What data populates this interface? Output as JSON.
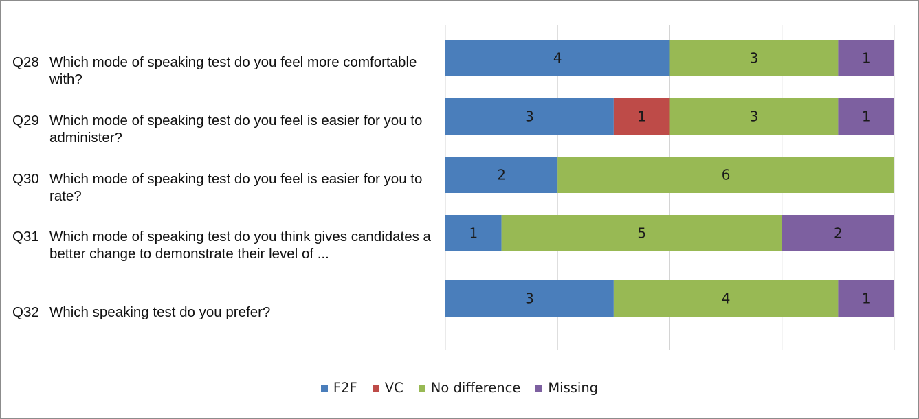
{
  "questions": [
    {
      "num": "Q28",
      "text": "Which mode of speaking test do you feel more comfortable with?"
    },
    {
      "num": "Q29",
      "text": "Which mode of speaking test do you feel is easier for you to administer?"
    },
    {
      "num": "Q30",
      "text": "Which mode of speaking test do you feel is easier for you to rate?"
    },
    {
      "num": "Q31",
      "text": "Which mode of speaking test do you think gives candidates a better change to demonstrate their level of ..."
    },
    {
      "num": "Q32",
      "text": "Which speaking test do you prefer?"
    }
  ],
  "chart_data": {
    "type": "bar",
    "orientation": "horizontal",
    "stacked": true,
    "categories": [
      "Q28",
      "Q29",
      "Q30",
      "Q31",
      "Q32"
    ],
    "series": [
      {
        "name": "F2F",
        "color": "#4a7ebb",
        "values": [
          4,
          3,
          2,
          1,
          3
        ]
      },
      {
        "name": "VC",
        "color": "#be4b48",
        "values": [
          0,
          1,
          0,
          0,
          0
        ]
      },
      {
        "name": "No difference",
        "color": "#98b954",
        "values": [
          3,
          3,
          6,
          5,
          4
        ]
      },
      {
        "name": "Missing",
        "color": "#7d60a0",
        "values": [
          1,
          1,
          0,
          2,
          1
        ]
      }
    ],
    "xlim": [
      0,
      8
    ],
    "grid": true,
    "legend_position": "bottom"
  }
}
